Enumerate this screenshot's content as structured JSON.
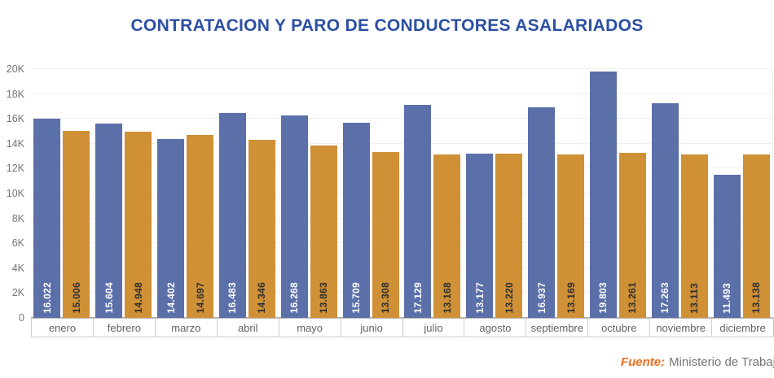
{
  "title": "CONTRATACION Y PARO DE CONDUCTORES ASALARIADOS",
  "source": {
    "prefix": "Fuente:",
    "text": "Ministerio de Trabaj"
  },
  "colors": {
    "title": "#2b4fa2",
    "source_accent": "#f26c1d",
    "axis_text": "#757575",
    "series_contratacion": "#5b6fa9",
    "series_paro": "#cf9036"
  },
  "chart_data": {
    "type": "bar",
    "title": "CONTRATACION Y PARO DE CONDUCTORES ASALARIADOS",
    "xlabel": "",
    "ylabel": "",
    "ylim": [
      0,
      20000
    ],
    "grid": true,
    "legend": false,
    "yticks": [
      "0",
      "2K",
      "4K",
      "6K",
      "8K",
      "10K",
      "12K",
      "14K",
      "16K",
      "18K",
      "20K"
    ],
    "categories": [
      "enero",
      "febrero",
      "marzo",
      "abril",
      "mayo",
      "junio",
      "julio",
      "agosto",
      "septiembre",
      "octubre",
      "noviembre",
      "diciembre"
    ],
    "series": [
      {
        "name": "contratacion",
        "color": "#5b6fa9",
        "label_color": "#ffffff",
        "values": [
          16022,
          15604,
          14402,
          16483,
          16268,
          15709,
          17129,
          13177,
          16937,
          19803,
          17263,
          11493
        ],
        "value_labels": [
          "16.022",
          "15.604",
          "14.402",
          "16.483",
          "16.268",
          "15.709",
          "17.129",
          "13.177",
          "16.937",
          "19.803",
          "17.263",
          "11.493"
        ]
      },
      {
        "name": "paro",
        "color": "#cf9036",
        "label_color": "#2f2f2f",
        "values": [
          15006,
          14948,
          14697,
          14346,
          13863,
          13308,
          13168,
          13220,
          13169,
          13261,
          13113,
          13138
        ],
        "value_labels": [
          "15.006",
          "14.948",
          "14.697",
          "14.346",
          "13.863",
          "13.308",
          "13.168",
          "13.220",
          "13.169",
          "13.261",
          "13.113",
          "13.138"
        ]
      }
    ]
  }
}
